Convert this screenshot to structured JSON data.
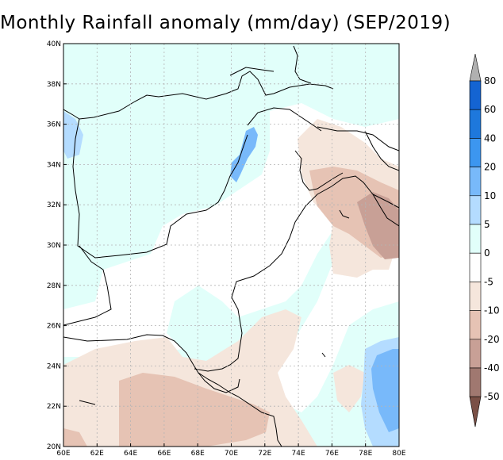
{
  "title": "Monthly Rainfall anomaly (mm/day)  (SEP/2019)",
  "map": {
    "lon_range": [
      60,
      80
    ],
    "lat_range": [
      20,
      40
    ],
    "x_ticks": [
      "60E",
      "62E",
      "64E",
      "66E",
      "68E",
      "70E",
      "72E",
      "74E",
      "76E",
      "78E",
      "80E"
    ],
    "y_ticks": [
      "20N",
      "22N",
      "24N",
      "26N",
      "28N",
      "30N",
      "32N",
      "34N",
      "36N",
      "38N",
      "40N"
    ]
  },
  "colorbar": {
    "labels": [
      "80",
      "60",
      "40",
      "20",
      "10",
      "5",
      "0",
      "-5",
      "-10",
      "-20",
      "-40",
      "-50"
    ],
    "colors": {
      "c80": "#b0b0b0",
      "c60": "#1464d2",
      "c40": "#1e78dc",
      "c20": "#3c96f0",
      "c10": "#78b9fa",
      "c5": "#b4dcff",
      "c0": "#e1fffa",
      "white": "#ffffff",
      "m5": "#f5e6dc",
      "m10": "#e6c3b4",
      "m20": "#c8a096",
      "m40": "#a07870",
      "m50": "#7a5046"
    }
  }
}
